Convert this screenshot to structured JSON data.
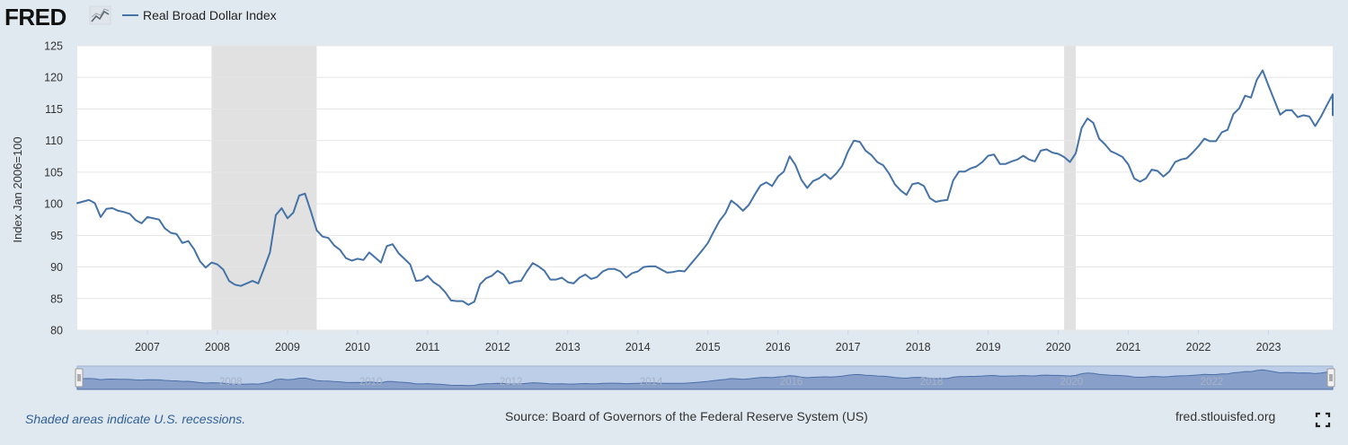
{
  "header": {
    "logo_text": "FRED",
    "legend_label": "Real Broad Dollar Index"
  },
  "colors": {
    "series": "#4572a7",
    "recession": "#e1e1e1",
    "page_bg": "#e1e9f0",
    "plot_bg": "#ffffff",
    "navigator_fill": "#7f97c4",
    "navigator_mask": "#bdcfe8",
    "footer_note": "#2f5f95"
  },
  "icons": {
    "logo_graph": "small-line-chart-icon",
    "fullscreen": "fullscreen-corners-icon"
  },
  "chart_data": {
    "type": "line",
    "title": "",
    "ylabel": "Index Jan 2006=100",
    "xlabel": "",
    "ylim": [
      80,
      125
    ],
    "yticks": [
      80,
      85,
      90,
      95,
      100,
      105,
      110,
      115,
      120,
      125
    ],
    "xlim": [
      "2006-01",
      "2023-12"
    ],
    "xticks": [
      "2007",
      "2008",
      "2009",
      "2010",
      "2011",
      "2012",
      "2013",
      "2014",
      "2015",
      "2016",
      "2017",
      "2018",
      "2019",
      "2020",
      "2021",
      "2022",
      "2023"
    ],
    "grid": "horizontal",
    "legend": "top-left",
    "recessions": [
      {
        "start": "2007-12",
        "end": "2009-06"
      },
      {
        "start": "2020-02",
        "end": "2020-04"
      }
    ],
    "navigator_labels": [
      "2008",
      "2010",
      "2012",
      "2014",
      "2016",
      "2018",
      "2020",
      "2022"
    ],
    "series": [
      {
        "name": "Real Broad Dollar Index",
        "points": [
          [
            "2006-01",
            100.1
          ],
          [
            "2006-03",
            100.6
          ],
          [
            "2006-04",
            100.1
          ],
          [
            "2006-05",
            97.9
          ],
          [
            "2006-06",
            99.2
          ],
          [
            "2006-07",
            99.3
          ],
          [
            "2006-08",
            98.9
          ],
          [
            "2006-09",
            98.7
          ],
          [
            "2006-10",
            98.4
          ],
          [
            "2006-11",
            97.4
          ],
          [
            "2006-12",
            96.9
          ],
          [
            "2007-01",
            97.9
          ],
          [
            "2007-03",
            97.5
          ],
          [
            "2007-04",
            96.1
          ],
          [
            "2007-05",
            95.4
          ],
          [
            "2007-06",
            95.2
          ],
          [
            "2007-07",
            93.8
          ],
          [
            "2007-08",
            94.1
          ],
          [
            "2007-09",
            92.8
          ],
          [
            "2007-10",
            90.9
          ],
          [
            "2007-11",
            89.9
          ],
          [
            "2007-12",
            90.7
          ],
          [
            "2008-01",
            90.4
          ],
          [
            "2008-02",
            89.6
          ],
          [
            "2008-03",
            87.8
          ],
          [
            "2008-04",
            87.2
          ],
          [
            "2008-05",
            87.0
          ],
          [
            "2008-06",
            87.4
          ],
          [
            "2008-07",
            87.8
          ],
          [
            "2008-08",
            87.4
          ],
          [
            "2008-09",
            89.8
          ],
          [
            "2008-10",
            92.3
          ],
          [
            "2008-11",
            98.2
          ],
          [
            "2008-12",
            99.3
          ],
          [
            "2009-01",
            97.7
          ],
          [
            "2009-02",
            98.6
          ],
          [
            "2009-03",
            101.3
          ],
          [
            "2009-04",
            101.6
          ],
          [
            "2009-05",
            98.8
          ],
          [
            "2009-06",
            95.8
          ],
          [
            "2009-07",
            94.8
          ],
          [
            "2009-08",
            94.6
          ],
          [
            "2009-09",
            93.4
          ],
          [
            "2009-10",
            92.7
          ],
          [
            "2009-11",
            91.4
          ],
          [
            "2009-12",
            91.0
          ],
          [
            "2010-01",
            91.3
          ],
          [
            "2010-02",
            91.1
          ],
          [
            "2010-03",
            92.3
          ],
          [
            "2010-04",
            91.5
          ],
          [
            "2010-05",
            90.7
          ],
          [
            "2010-06",
            93.3
          ],
          [
            "2010-07",
            93.6
          ],
          [
            "2010-08",
            92.2
          ],
          [
            "2010-09",
            91.3
          ],
          [
            "2010-10",
            90.4
          ],
          [
            "2010-11",
            87.8
          ],
          [
            "2010-12",
            87.9
          ],
          [
            "2011-01",
            88.6
          ],
          [
            "2011-02",
            87.6
          ],
          [
            "2011-03",
            87.0
          ],
          [
            "2011-04",
            86.0
          ],
          [
            "2011-05",
            84.7
          ],
          [
            "2011-06",
            84.6
          ],
          [
            "2011-07",
            84.6
          ],
          [
            "2011-08",
            84.0
          ],
          [
            "2011-09",
            84.5
          ],
          [
            "2011-10",
            87.3
          ],
          [
            "2011-11",
            88.2
          ],
          [
            "2011-12",
            88.6
          ],
          [
            "2012-01",
            89.4
          ],
          [
            "2012-02",
            88.8
          ],
          [
            "2012-03",
            87.4
          ],
          [
            "2012-04",
            87.7
          ],
          [
            "2012-05",
            87.8
          ],
          [
            "2012-06",
            89.3
          ],
          [
            "2012-07",
            90.6
          ],
          [
            "2012-08",
            90.1
          ],
          [
            "2012-09",
            89.4
          ],
          [
            "2012-10",
            88.0
          ],
          [
            "2012-11",
            88.0
          ],
          [
            "2012-12",
            88.3
          ],
          [
            "2013-01",
            87.6
          ],
          [
            "2013-02",
            87.4
          ],
          [
            "2013-03",
            88.3
          ],
          [
            "2013-04",
            88.8
          ],
          [
            "2013-05",
            88.1
          ],
          [
            "2013-06",
            88.4
          ],
          [
            "2013-07",
            89.3
          ],
          [
            "2013-08",
            89.7
          ],
          [
            "2013-09",
            89.7
          ],
          [
            "2013-10",
            89.3
          ],
          [
            "2013-11",
            88.3
          ],
          [
            "2013-12",
            89.0
          ],
          [
            "2014-01",
            89.3
          ],
          [
            "2014-02",
            90.0
          ],
          [
            "2014-03",
            90.1
          ],
          [
            "2014-04",
            90.1
          ],
          [
            "2014-05",
            89.6
          ],
          [
            "2014-06",
            89.1
          ],
          [
            "2014-07",
            89.2
          ],
          [
            "2014-08",
            89.4
          ],
          [
            "2014-09",
            89.3
          ],
          [
            "2014-10",
            90.4
          ],
          [
            "2014-11",
            91.5
          ],
          [
            "2014-12",
            92.6
          ],
          [
            "2015-01",
            93.8
          ],
          [
            "2015-02",
            95.6
          ],
          [
            "2015-03",
            97.3
          ],
          [
            "2015-04",
            98.5
          ],
          [
            "2015-05",
            100.5
          ],
          [
            "2015-06",
            99.8
          ],
          [
            "2015-07",
            98.9
          ],
          [
            "2015-08",
            99.8
          ],
          [
            "2015-09",
            101.4
          ],
          [
            "2015-10",
            102.9
          ],
          [
            "2015-11",
            103.4
          ],
          [
            "2015-12",
            102.8
          ],
          [
            "2016-01",
            104.3
          ],
          [
            "2016-02",
            105.1
          ],
          [
            "2016-03",
            107.5
          ],
          [
            "2016-04",
            106.1
          ],
          [
            "2016-05",
            103.8
          ],
          [
            "2016-06",
            102.5
          ],
          [
            "2016-07",
            103.6
          ],
          [
            "2016-08",
            104.0
          ],
          [
            "2016-09",
            104.7
          ],
          [
            "2016-10",
            103.9
          ],
          [
            "2016-11",
            104.8
          ],
          [
            "2016-12",
            106.0
          ],
          [
            "2017-01",
            108.3
          ],
          [
            "2017-02",
            110.0
          ],
          [
            "2017-03",
            109.8
          ],
          [
            "2017-04",
            108.4
          ],
          [
            "2017-05",
            107.7
          ],
          [
            "2017-06",
            106.6
          ],
          [
            "2017-07",
            106.1
          ],
          [
            "2017-08",
            104.8
          ],
          [
            "2017-09",
            103.1
          ],
          [
            "2017-10",
            102.1
          ],
          [
            "2017-11",
            101.4
          ],
          [
            "2017-12",
            103.1
          ],
          [
            "2018-01",
            103.3
          ],
          [
            "2018-02",
            102.8
          ],
          [
            "2018-03",
            100.9
          ],
          [
            "2018-04",
            100.3
          ],
          [
            "2018-05",
            100.5
          ],
          [
            "2018-06",
            100.6
          ],
          [
            "2018-07",
            103.7
          ],
          [
            "2018-08",
            105.1
          ],
          [
            "2018-09",
            105.1
          ],
          [
            "2018-10",
            105.6
          ],
          [
            "2018-11",
            105.9
          ],
          [
            "2018-12",
            106.6
          ],
          [
            "2019-01",
            107.6
          ],
          [
            "2019-02",
            107.8
          ],
          [
            "2019-03",
            106.3
          ],
          [
            "2019-04",
            106.3
          ],
          [
            "2019-05",
            106.7
          ],
          [
            "2019-06",
            107.0
          ],
          [
            "2019-07",
            107.6
          ],
          [
            "2019-08",
            107.0
          ],
          [
            "2019-09",
            106.7
          ],
          [
            "2019-10",
            108.4
          ],
          [
            "2019-11",
            108.6
          ],
          [
            "2019-12",
            108.1
          ],
          [
            "2020-01",
            107.9
          ],
          [
            "2020-02",
            107.4
          ],
          [
            "2020-03",
            106.6
          ],
          [
            "2020-04",
            108.0
          ],
          [
            "2020-05",
            112.0
          ],
          [
            "2020-06",
            113.5
          ],
          [
            "2020-07",
            112.8
          ],
          [
            "2020-08",
            110.3
          ],
          [
            "2020-09",
            109.4
          ],
          [
            "2020-10",
            108.3
          ],
          [
            "2020-11",
            107.9
          ],
          [
            "2020-12",
            107.4
          ],
          [
            "2021-01",
            106.2
          ],
          [
            "2021-02",
            104.0
          ],
          [
            "2021-03",
            103.5
          ],
          [
            "2021-04",
            104.0
          ],
          [
            "2021-05",
            105.4
          ],
          [
            "2021-06",
            105.2
          ],
          [
            "2021-07",
            104.3
          ],
          [
            "2021-08",
            105.1
          ],
          [
            "2021-09",
            106.6
          ],
          [
            "2021-10",
            107.0
          ],
          [
            "2021-11",
            107.2
          ],
          [
            "2021-12",
            108.1
          ],
          [
            "2022-01",
            109.1
          ],
          [
            "2022-02",
            110.3
          ],
          [
            "2022-03",
            109.9
          ],
          [
            "2022-04",
            109.9
          ],
          [
            "2022-05",
            111.3
          ],
          [
            "2022-06",
            111.7
          ],
          [
            "2022-07",
            114.2
          ],
          [
            "2022-08",
            115.1
          ],
          [
            "2022-09",
            117.1
          ],
          [
            "2022-10",
            116.8
          ],
          [
            "2022-11",
            119.6
          ],
          [
            "2022-12",
            121.1
          ],
          [
            "2023-01",
            118.7
          ],
          [
            "2023-02",
            116.4
          ],
          [
            "2023-03",
            114.1
          ],
          [
            "2023-04",
            114.8
          ],
          [
            "2023-05",
            114.8
          ],
          [
            "2023-06",
            113.7
          ],
          [
            "2023-07",
            114.0
          ],
          [
            "2023-08",
            113.8
          ],
          [
            "2023-09",
            112.3
          ],
          [
            "2023-10",
            113.8
          ],
          [
            "2023-11",
            115.6
          ],
          [
            "2023-12",
            117.3
          ],
          [
            "2024-01",
            115.3
          ],
          [
            "2024-02",
            114.0
          ]
        ]
      }
    ]
  },
  "footer": {
    "recession_note": "Shaded areas indicate U.S. recessions.",
    "source": "Source: Board of Governors of the Federal Reserve System (US)",
    "site": "fred.stlouisfed.org"
  }
}
